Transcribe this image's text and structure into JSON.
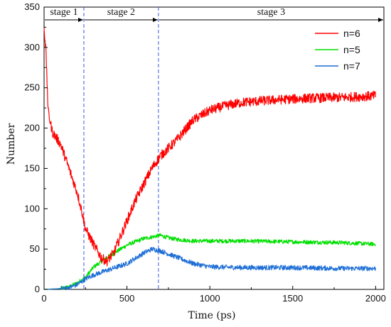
{
  "chart_data": {
    "type": "line",
    "xlabel": "Time (ps)",
    "ylabel": "Number",
    "xlim": [
      0,
      2050
    ],
    "ylim": [
      0,
      350
    ],
    "x_ticks": [
      0,
      500,
      1000,
      1500,
      2000
    ],
    "y_ticks": [
      0,
      50,
      100,
      150,
      200,
      250,
      300,
      350
    ],
    "x_tick_labels": [
      "0",
      "500",
      "1000",
      "1500",
      "2000"
    ],
    "y_tick_labels": [
      "0",
      "50",
      "100",
      "150",
      "200",
      "250",
      "300",
      "350"
    ],
    "grid": false,
    "legend_position": "top-right",
    "stage_boundaries": [
      240,
      690
    ],
    "stages": [
      {
        "label": "stage 1",
        "from": 0,
        "to": 240
      },
      {
        "label": "stage 2",
        "from": 240,
        "to": 690
      },
      {
        "label": "stage 3",
        "from": 690,
        "to": 2050
      }
    ],
    "series": [
      {
        "name": "n=6",
        "color": "#ff0000",
        "noise": 6,
        "points": [
          [
            0,
            325
          ],
          [
            10,
            300
          ],
          [
            25,
            220
          ],
          [
            50,
            195
          ],
          [
            100,
            180
          ],
          [
            150,
            150
          ],
          [
            200,
            120
          ],
          [
            230,
            95
          ],
          [
            250,
            75
          ],
          [
            300,
            55
          ],
          [
            350,
            38
          ],
          [
            380,
            35
          ],
          [
            420,
            45
          ],
          [
            480,
            75
          ],
          [
            550,
            110
          ],
          [
            600,
            130
          ],
          [
            650,
            150
          ],
          [
            700,
            165
          ],
          [
            750,
            175
          ],
          [
            800,
            185
          ],
          [
            900,
            210
          ],
          [
            1000,
            222
          ],
          [
            1100,
            228
          ],
          [
            1200,
            232
          ],
          [
            1400,
            235
          ],
          [
            1600,
            237
          ],
          [
            1800,
            238
          ],
          [
            2000,
            240
          ]
        ]
      },
      {
        "name": "n=5",
        "color": "#00e000",
        "noise": 2.5,
        "points": [
          [
            0,
            0
          ],
          [
            100,
            1
          ],
          [
            150,
            3
          ],
          [
            200,
            8
          ],
          [
            250,
            15
          ],
          [
            300,
            28
          ],
          [
            350,
            35
          ],
          [
            400,
            42
          ],
          [
            500,
            55
          ],
          [
            600,
            63
          ],
          [
            650,
            65
          ],
          [
            700,
            67
          ],
          [
            750,
            64
          ],
          [
            800,
            62
          ],
          [
            900,
            60
          ],
          [
            1000,
            60
          ],
          [
            1200,
            60
          ],
          [
            1500,
            59
          ],
          [
            1800,
            58
          ],
          [
            2000,
            56
          ]
        ]
      },
      {
        "name": "n=7",
        "color": "#1f6fd6",
        "noise": 3,
        "points": [
          [
            0,
            0
          ],
          [
            100,
            1
          ],
          [
            150,
            2
          ],
          [
            200,
            6
          ],
          [
            250,
            13
          ],
          [
            300,
            18
          ],
          [
            400,
            25
          ],
          [
            500,
            32
          ],
          [
            600,
            45
          ],
          [
            650,
            50
          ],
          [
            700,
            48
          ],
          [
            800,
            40
          ],
          [
            900,
            32
          ],
          [
            1000,
            28
          ],
          [
            1200,
            27
          ],
          [
            1500,
            27
          ],
          [
            1800,
            26
          ],
          [
            2000,
            26
          ]
        ]
      }
    ]
  }
}
